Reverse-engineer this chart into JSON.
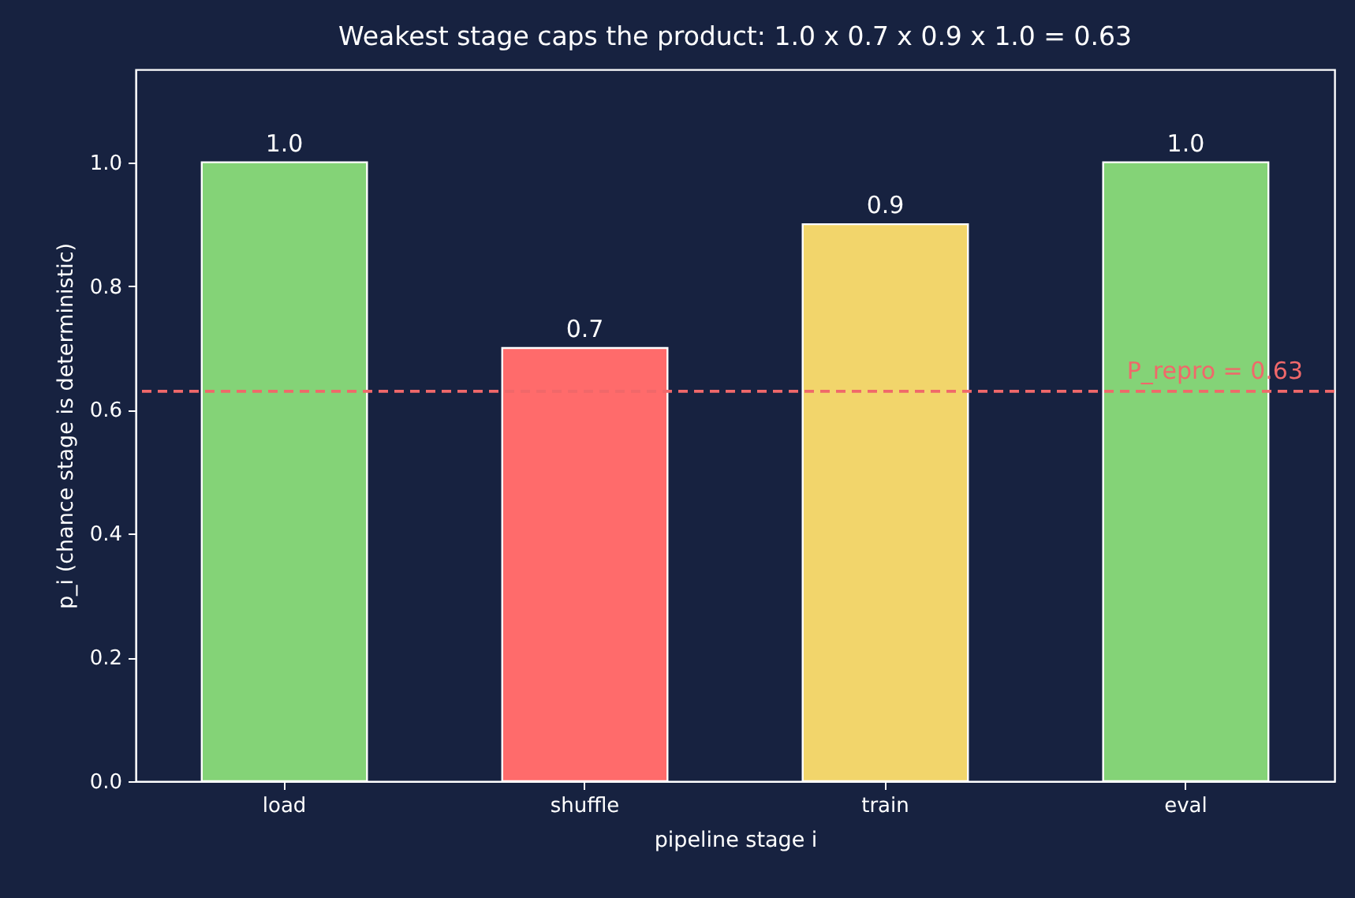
{
  "chart_data": {
    "type": "bar",
    "title": "Weakest stage caps the product: 1.0 x 0.7 x 0.9 x 1.0 = 0.63",
    "xlabel": "pipeline stage i",
    "ylabel": "p_i  (chance stage is deterministic)",
    "categories": [
      "load",
      "shuffle",
      "train",
      "eval"
    ],
    "values": [
      1.0,
      0.7,
      0.9,
      1.0
    ],
    "colors": [
      "#84d377",
      "#ff6b6b",
      "#f2d56b",
      "#84d377"
    ],
    "value_labels": [
      "1.0",
      "0.7",
      "0.9",
      "1.0"
    ],
    "ylim": [
      0,
      1.15
    ],
    "yticks": [
      {
        "value": 0,
        "label": "0.0"
      },
      {
        "value": 0.2,
        "label": "0.2"
      },
      {
        "value": 0.4,
        "label": "0.4"
      },
      {
        "value": 0.6,
        "label": "0.6"
      },
      {
        "value": 0.8,
        "label": "0.8"
      },
      {
        "value": 1.0,
        "label": "1.0"
      }
    ],
    "ref_lines": [
      {
        "axis": "y",
        "value": 0.63,
        "label": "P_repro = 0.63",
        "color": "#f0686a",
        "line_style": "dashed"
      }
    ],
    "grid": false
  }
}
